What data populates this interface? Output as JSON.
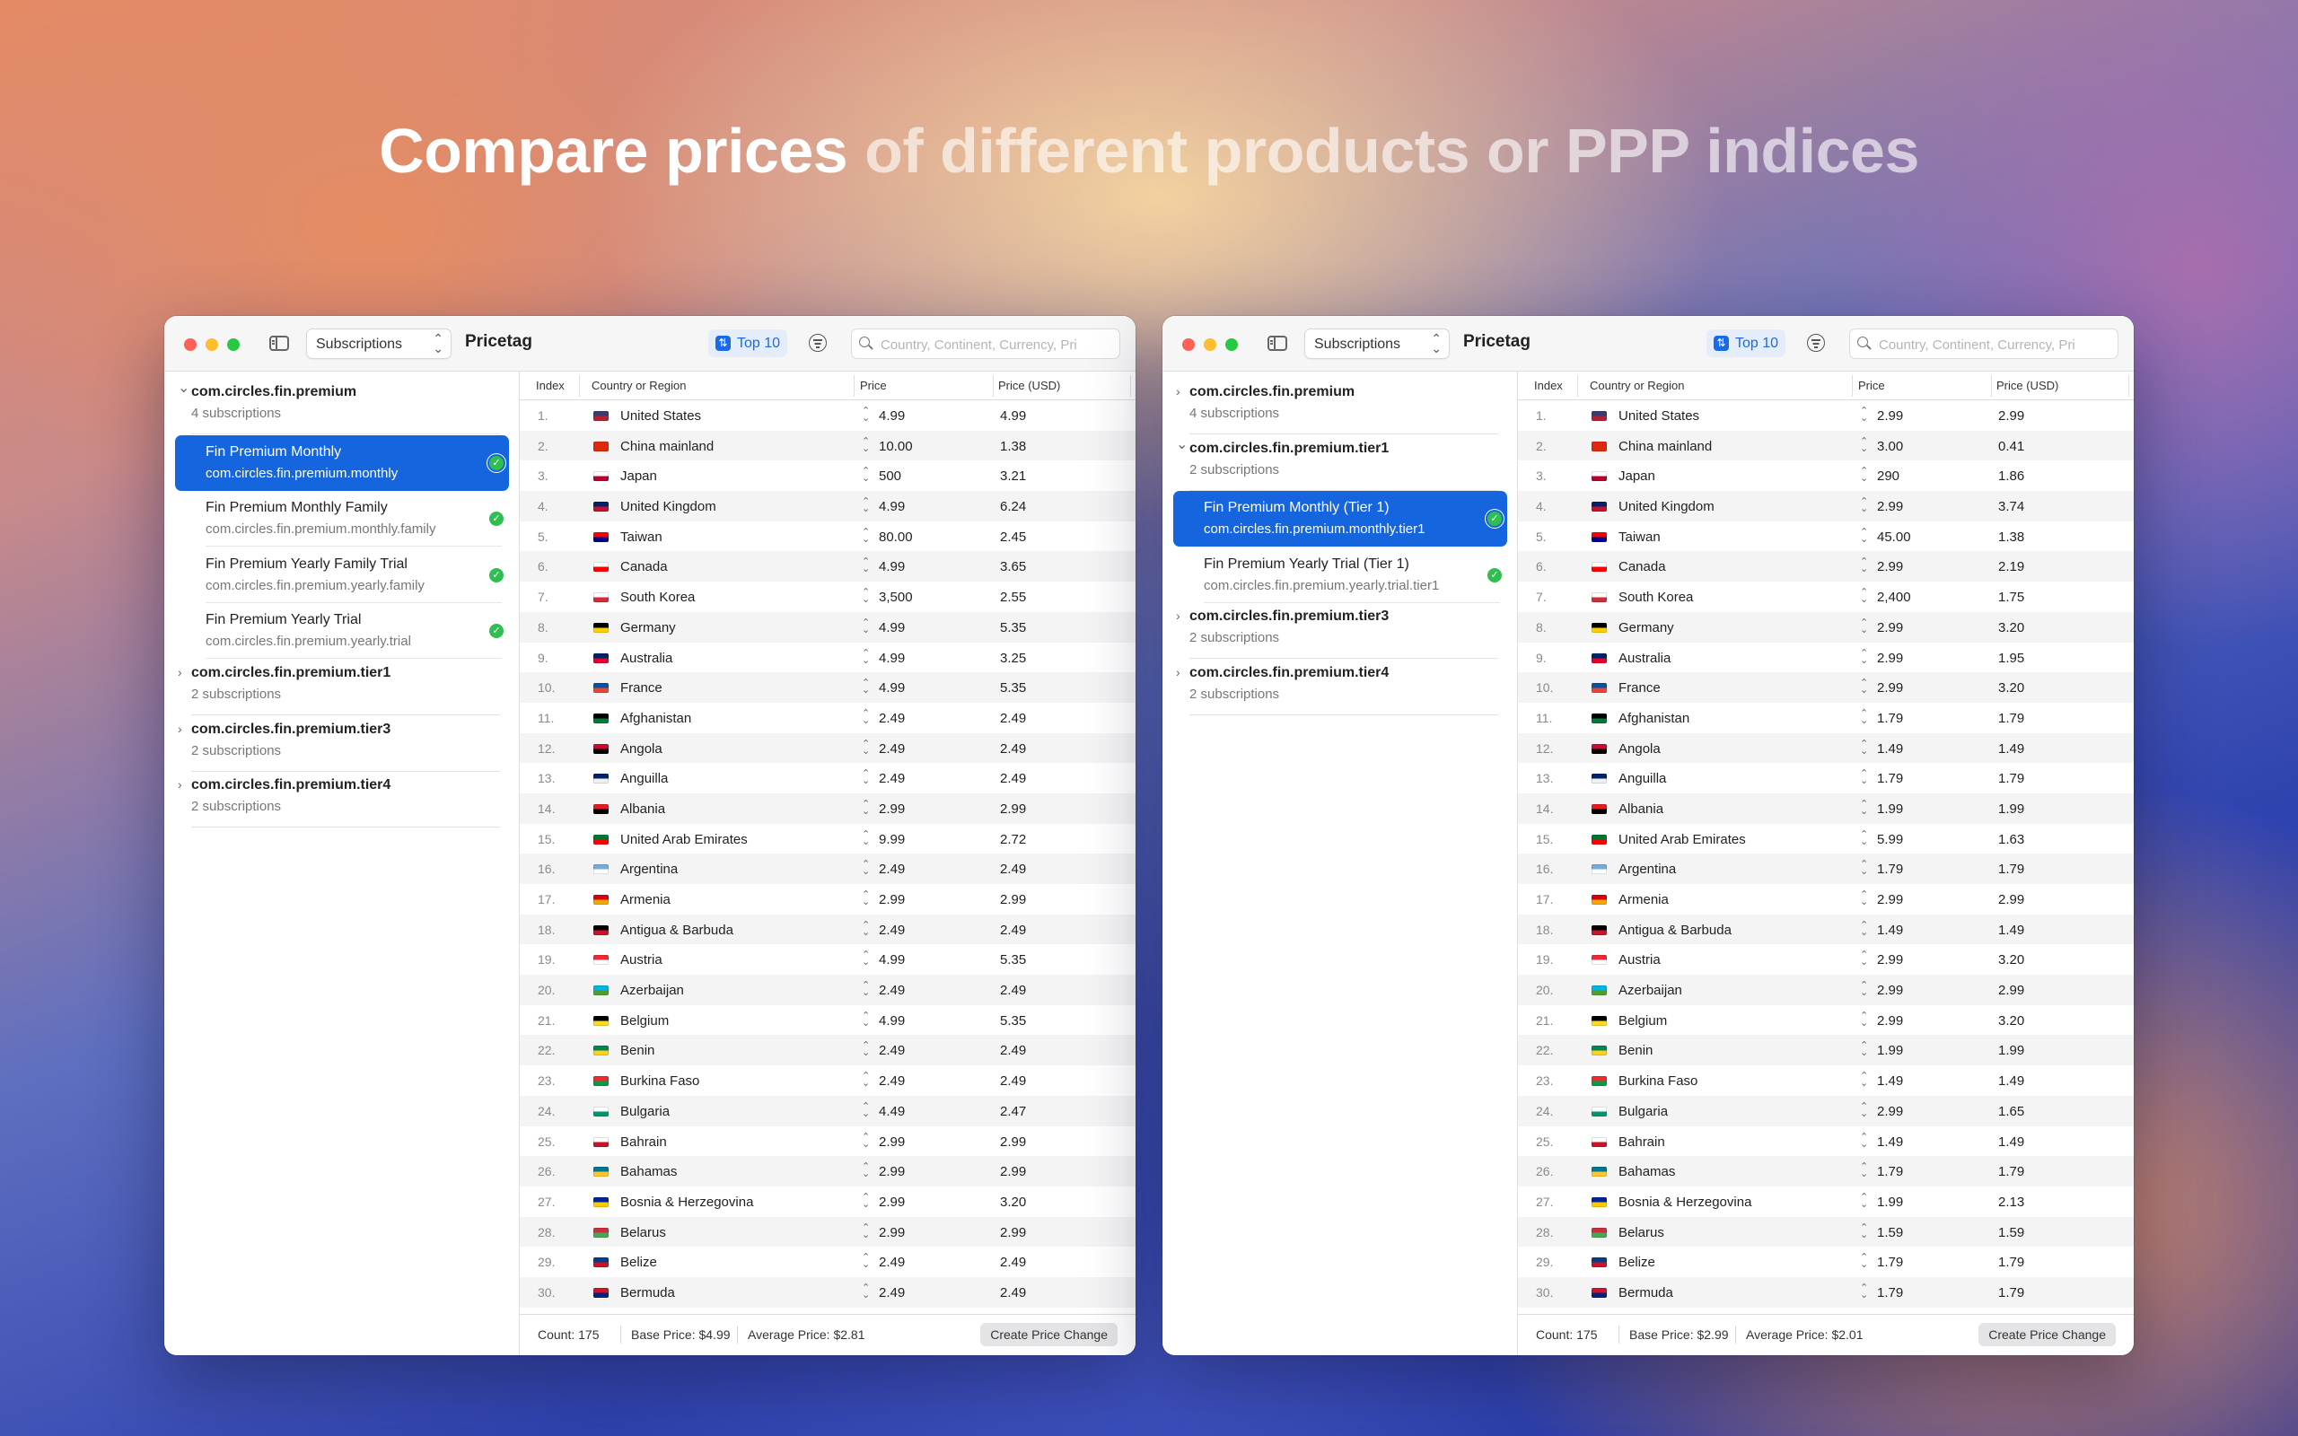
{
  "headline": {
    "bright": "Compare prices",
    "dim": " of different products or PPP indices"
  },
  "windows": [
    {
      "popup": "Subscriptions",
      "app_title": "Pricetag",
      "top_button": "Top 10",
      "search_placeholder": "Country, Continent, Currency, Pri",
      "sidebar": [
        {
          "kind": "group",
          "expanded": true,
          "name": "com.circles.fin.premium",
          "count": "4 subscriptions"
        },
        {
          "kind": "item",
          "selected": true,
          "name": "Fin Premium Monthly",
          "id": "com.circles.fin.premium.monthly"
        },
        {
          "kind": "item",
          "selected": false,
          "name": "Fin Premium Monthly Family",
          "id": "com.circles.fin.premium.monthly.family"
        },
        {
          "kind": "item",
          "selected": false,
          "name": "Fin Premium Yearly Family Trial",
          "id": "com.circles.fin.premium.yearly.family"
        },
        {
          "kind": "item",
          "selected": false,
          "name": "Fin Premium Yearly Trial",
          "id": "com.circles.fin.premium.yearly.trial"
        },
        {
          "kind": "group",
          "expanded": false,
          "name": "com.circles.fin.premium.tier1",
          "count": "2 subscriptions"
        },
        {
          "kind": "group",
          "expanded": false,
          "name": "com.circles.fin.premium.tier3",
          "count": "2 subscriptions"
        },
        {
          "kind": "group",
          "expanded": false,
          "name": "com.circles.fin.premium.tier4",
          "count": "2 subscriptions"
        }
      ],
      "columns": [
        "Index",
        "Country or Region",
        "Price",
        "Price (USD)"
      ],
      "rows": [
        [
          "1.",
          "United States",
          "4.99",
          "4.99"
        ],
        [
          "2.",
          "China mainland",
          "10.00",
          "1.38"
        ],
        [
          "3.",
          "Japan",
          "500",
          "3.21"
        ],
        [
          "4.",
          "United Kingdom",
          "4.99",
          "6.24"
        ],
        [
          "5.",
          "Taiwan",
          "80.00",
          "2.45"
        ],
        [
          "6.",
          "Canada",
          "4.99",
          "3.65"
        ],
        [
          "7.",
          "South Korea",
          "3,500",
          "2.55"
        ],
        [
          "8.",
          "Germany",
          "4.99",
          "5.35"
        ],
        [
          "9.",
          "Australia",
          "4.99",
          "3.25"
        ],
        [
          "10.",
          "France",
          "4.99",
          "5.35"
        ],
        [
          "11.",
          "Afghanistan",
          "2.49",
          "2.49"
        ],
        [
          "12.",
          "Angola",
          "2.49",
          "2.49"
        ],
        [
          "13.",
          "Anguilla",
          "2.49",
          "2.49"
        ],
        [
          "14.",
          "Albania",
          "2.99",
          "2.99"
        ],
        [
          "15.",
          "United Arab Emirates",
          "9.99",
          "2.72"
        ],
        [
          "16.",
          "Argentina",
          "2.49",
          "2.49"
        ],
        [
          "17.",
          "Armenia",
          "2.99",
          "2.99"
        ],
        [
          "18.",
          "Antigua & Barbuda",
          "2.49",
          "2.49"
        ],
        [
          "19.",
          "Austria",
          "4.99",
          "5.35"
        ],
        [
          "20.",
          "Azerbaijan",
          "2.49",
          "2.49"
        ],
        [
          "21.",
          "Belgium",
          "4.99",
          "5.35"
        ],
        [
          "22.",
          "Benin",
          "2.49",
          "2.49"
        ],
        [
          "23.",
          "Burkina Faso",
          "2.49",
          "2.49"
        ],
        [
          "24.",
          "Bulgaria",
          "4.49",
          "2.47"
        ],
        [
          "25.",
          "Bahrain",
          "2.99",
          "2.99"
        ],
        [
          "26.",
          "Bahamas",
          "2.99",
          "2.99"
        ],
        [
          "27.",
          "Bosnia & Herzegovina",
          "2.99",
          "3.20"
        ],
        [
          "28.",
          "Belarus",
          "2.99",
          "2.99"
        ],
        [
          "29.",
          "Belize",
          "2.49",
          "2.49"
        ],
        [
          "30.",
          "Bermuda",
          "2.49",
          "2.49"
        ]
      ],
      "footer": {
        "count": "Count: 175",
        "base": "Base Price: $4.99",
        "average": "Average Price: $2.81",
        "button": "Create Price Change"
      }
    },
    {
      "popup": "Subscriptions",
      "app_title": "Pricetag",
      "top_button": "Top 10",
      "search_placeholder": "Country, Continent, Currency, Pri",
      "sidebar": [
        {
          "kind": "group",
          "expanded": false,
          "name": "com.circles.fin.premium",
          "count": "4 subscriptions"
        },
        {
          "kind": "group",
          "expanded": true,
          "name": "com.circles.fin.premium.tier1",
          "count": "2 subscriptions"
        },
        {
          "kind": "item",
          "selected": true,
          "name": "Fin Premium Monthly (Tier 1)",
          "id": "com.circles.fin.premium.monthly.tier1"
        },
        {
          "kind": "item",
          "selected": false,
          "name": "Fin Premium Yearly Trial (Tier 1)",
          "id": "com.circles.fin.premium.yearly.trial.tier1"
        },
        {
          "kind": "group",
          "expanded": false,
          "name": "com.circles.fin.premium.tier3",
          "count": "2 subscriptions"
        },
        {
          "kind": "group",
          "expanded": false,
          "name": "com.circles.fin.premium.tier4",
          "count": "2 subscriptions"
        }
      ],
      "columns": [
        "Index",
        "Country or Region",
        "Price",
        "Price (USD)"
      ],
      "rows": [
        [
          "1.",
          "United States",
          "2.99",
          "2.99"
        ],
        [
          "2.",
          "China mainland",
          "3.00",
          "0.41"
        ],
        [
          "3.",
          "Japan",
          "290",
          "1.86"
        ],
        [
          "4.",
          "United Kingdom",
          "2.99",
          "3.74"
        ],
        [
          "5.",
          "Taiwan",
          "45.00",
          "1.38"
        ],
        [
          "6.",
          "Canada",
          "2.99",
          "2.19"
        ],
        [
          "7.",
          "South Korea",
          "2,400",
          "1.75"
        ],
        [
          "8.",
          "Germany",
          "2.99",
          "3.20"
        ],
        [
          "9.",
          "Australia",
          "2.99",
          "1.95"
        ],
        [
          "10.",
          "France",
          "2.99",
          "3.20"
        ],
        [
          "11.",
          "Afghanistan",
          "1.79",
          "1.79"
        ],
        [
          "12.",
          "Angola",
          "1.49",
          "1.49"
        ],
        [
          "13.",
          "Anguilla",
          "1.79",
          "1.79"
        ],
        [
          "14.",
          "Albania",
          "1.99",
          "1.99"
        ],
        [
          "15.",
          "United Arab Emirates",
          "5.99",
          "1.63"
        ],
        [
          "16.",
          "Argentina",
          "1.79",
          "1.79"
        ],
        [
          "17.",
          "Armenia",
          "2.99",
          "2.99"
        ],
        [
          "18.",
          "Antigua & Barbuda",
          "1.49",
          "1.49"
        ],
        [
          "19.",
          "Austria",
          "2.99",
          "3.20"
        ],
        [
          "20.",
          "Azerbaijan",
          "2.99",
          "2.99"
        ],
        [
          "21.",
          "Belgium",
          "2.99",
          "3.20"
        ],
        [
          "22.",
          "Benin",
          "1.99",
          "1.99"
        ],
        [
          "23.",
          "Burkina Faso",
          "1.49",
          "1.49"
        ],
        [
          "24.",
          "Bulgaria",
          "2.99",
          "1.65"
        ],
        [
          "25.",
          "Bahrain",
          "1.49",
          "1.49"
        ],
        [
          "26.",
          "Bahamas",
          "1.79",
          "1.79"
        ],
        [
          "27.",
          "Bosnia & Herzegovina",
          "1.99",
          "2.13"
        ],
        [
          "28.",
          "Belarus",
          "1.59",
          "1.59"
        ],
        [
          "29.",
          "Belize",
          "1.79",
          "1.79"
        ],
        [
          "30.",
          "Bermuda",
          "1.79",
          "1.79"
        ]
      ],
      "footer": {
        "count": "Count: 175",
        "base": "Base Price: $2.99",
        "average": "Average Price: $2.01",
        "button": "Create Price Change"
      }
    }
  ],
  "flag_colors": {
    "United States": [
      "#3c3b6e",
      "#b22234"
    ],
    "China mainland": [
      "#de2910",
      "#de2910"
    ],
    "Japan": [
      "#ffffff",
      "#bc002d"
    ],
    "United Kingdom": [
      "#012169",
      "#c8102e"
    ],
    "Taiwan": [
      "#fe0000",
      "#000095"
    ],
    "Canada": [
      "#ffffff",
      "#ff0000"
    ],
    "South Korea": [
      "#ffffff",
      "#cd2e3a"
    ],
    "Germany": [
      "#000000",
      "#ffce00"
    ],
    "Australia": [
      "#012169",
      "#e4002b"
    ],
    "France": [
      "#0055a4",
      "#ef4135"
    ],
    "Afghanistan": [
      "#000000",
      "#007a36"
    ],
    "Angola": [
      "#cc092f",
      "#000000"
    ],
    "Anguilla": [
      "#012169",
      "#f0f0f0"
    ],
    "Albania": [
      "#e41e20",
      "#000000"
    ],
    "United Arab Emirates": [
      "#00732f",
      "#ff0000"
    ],
    "Argentina": [
      "#74acdf",
      "#ffffff"
    ],
    "Armenia": [
      "#d90012",
      "#f2a800"
    ],
    "Antigua & Barbuda": [
      "#000000",
      "#ce1126"
    ],
    "Austria": [
      "#ed2939",
      "#ffffff"
    ],
    "Azerbaijan": [
      "#00b5e2",
      "#509e2f"
    ],
    "Belgium": [
      "#000000",
      "#fdda24"
    ],
    "Benin": [
      "#008751",
      "#fcd116"
    ],
    "Burkina Faso": [
      "#ef2b2d",
      "#009e49"
    ],
    "Bulgaria": [
      "#ffffff",
      "#00966e"
    ],
    "Bahrain": [
      "#ffffff",
      "#ce1126"
    ],
    "Bahamas": [
      "#00778b",
      "#ffc72c"
    ],
    "Bosnia & Herzegovina": [
      "#002395",
      "#fecb00"
    ],
    "Belarus": [
      "#c8313e",
      "#4aa657"
    ],
    "Belize": [
      "#003f87",
      "#ce1126"
    ],
    "Bermuda": [
      "#cf142b",
      "#00247d"
    ]
  }
}
